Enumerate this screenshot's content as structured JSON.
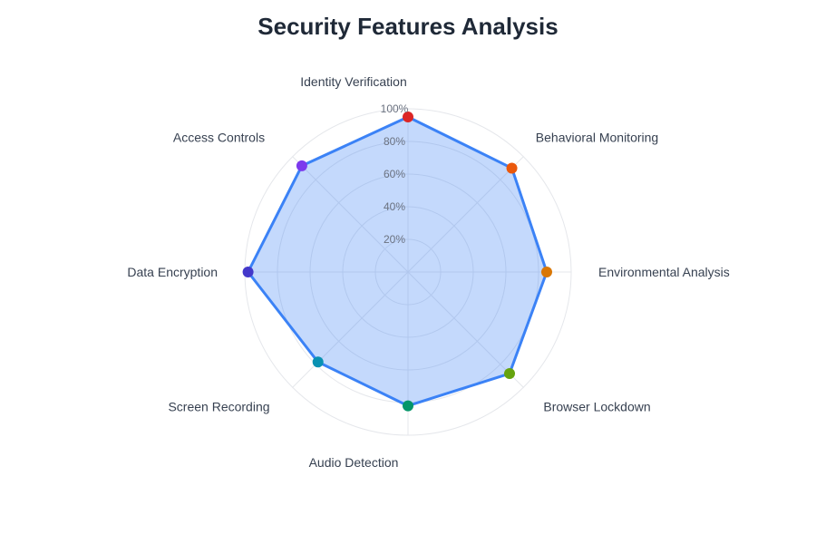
{
  "chart_data": {
    "type": "radar",
    "title": "Security Features Analysis",
    "categories": [
      "Identity Verification",
      "Behavioral Monitoring",
      "Environmental Analysis",
      "Browser Lockdown",
      "Audio Detection",
      "Screen Recording",
      "Data Encryption",
      "Access Controls"
    ],
    "series": [
      {
        "values": [
          95,
          90,
          85,
          88,
          82,
          78,
          98,
          92
        ],
        "color": "#3b82f6",
        "fill": "rgba(59,130,246,0.3)"
      }
    ],
    "point_colors": [
      "#dc2626",
      "#ea580c",
      "#d97706",
      "#65a30d",
      "#059669",
      "#0891b2",
      "#4338ca",
      "#7c3aed"
    ],
    "r_range": [
      0,
      100
    ],
    "tick_values": [
      20,
      40,
      60,
      80,
      100
    ],
    "tick_labels": [
      "20%",
      "40%",
      "60%",
      "80%",
      "100%"
    ],
    "grid": true,
    "legend": false
  }
}
